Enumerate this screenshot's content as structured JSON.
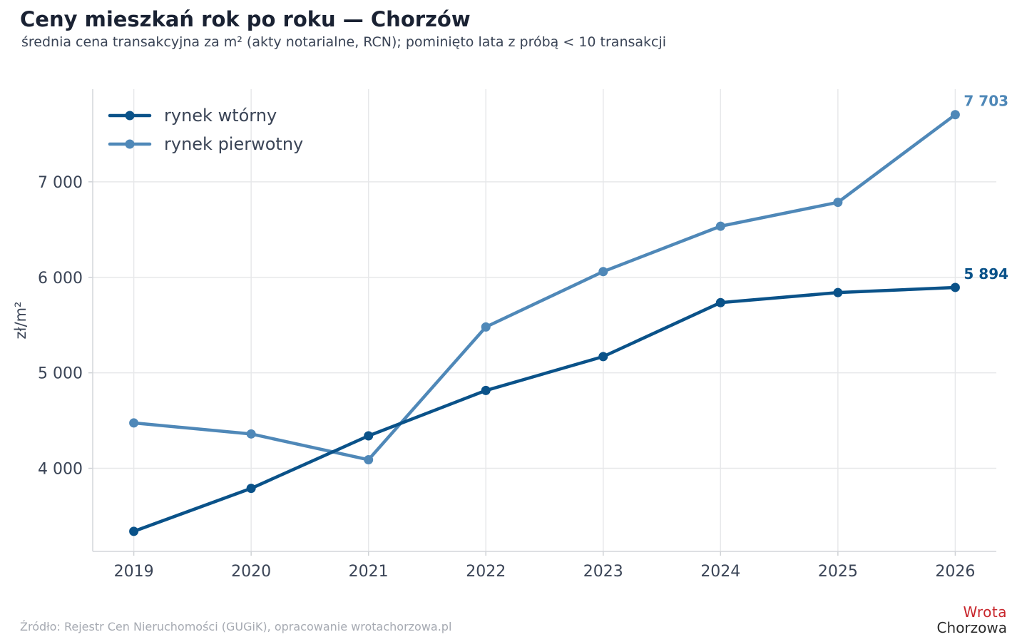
{
  "header": {
    "title": "Ceny mieszkań rok po roku — Chorzów",
    "subtitle": "średnia cena transakcyjna za m² (akty notarialne, RCN); pominięto lata z próbą < 10 transakcji"
  },
  "footer": {
    "source": "Źródło: Rejestr Cen Nieruchomości (GUGiK), opracowanie wrotachorzowa.pl",
    "logo_line1": "Wrota",
    "logo_line2": "Chorzowa"
  },
  "chart_data": {
    "type": "line",
    "title": "Ceny mieszkań rok po roku — Chorzów",
    "subtitle": "średnia cena transakcyjna za m² (akty notarialne, RCN); pominięto lata z próbą < 10 transakcji",
    "xlabel": "",
    "ylabel": "zł/m²",
    "x": [
      2019,
      2020,
      2021,
      2022,
      2023,
      2024,
      2025,
      2026
    ],
    "x_tick_labels": [
      "2019",
      "2020",
      "2021",
      "2022",
      "2023",
      "2024",
      "2025",
      "2026"
    ],
    "y_ticks": [
      4000,
      5000,
      6000,
      7000
    ],
    "y_tick_labels": [
      "4 000",
      "5 000",
      "6 000",
      "7 000"
    ],
    "xlim": [
      2018.65,
      2026.35
    ],
    "ylim": [
      3130,
      7970
    ],
    "grid": true,
    "legend_position": "top-left",
    "series": [
      {
        "name": "rynek wtórny",
        "color": "#0a5289",
        "values": [
          3340,
          3790,
          4340,
          4815,
          5170,
          5735,
          5840,
          5894
        ],
        "end_label": "5 894"
      },
      {
        "name": "rynek pierwotny",
        "color": "#4f88b8",
        "values": [
          4475,
          4360,
          4090,
          5480,
          6060,
          6535,
          6785,
          7703
        ],
        "end_label": "7 703"
      }
    ]
  }
}
